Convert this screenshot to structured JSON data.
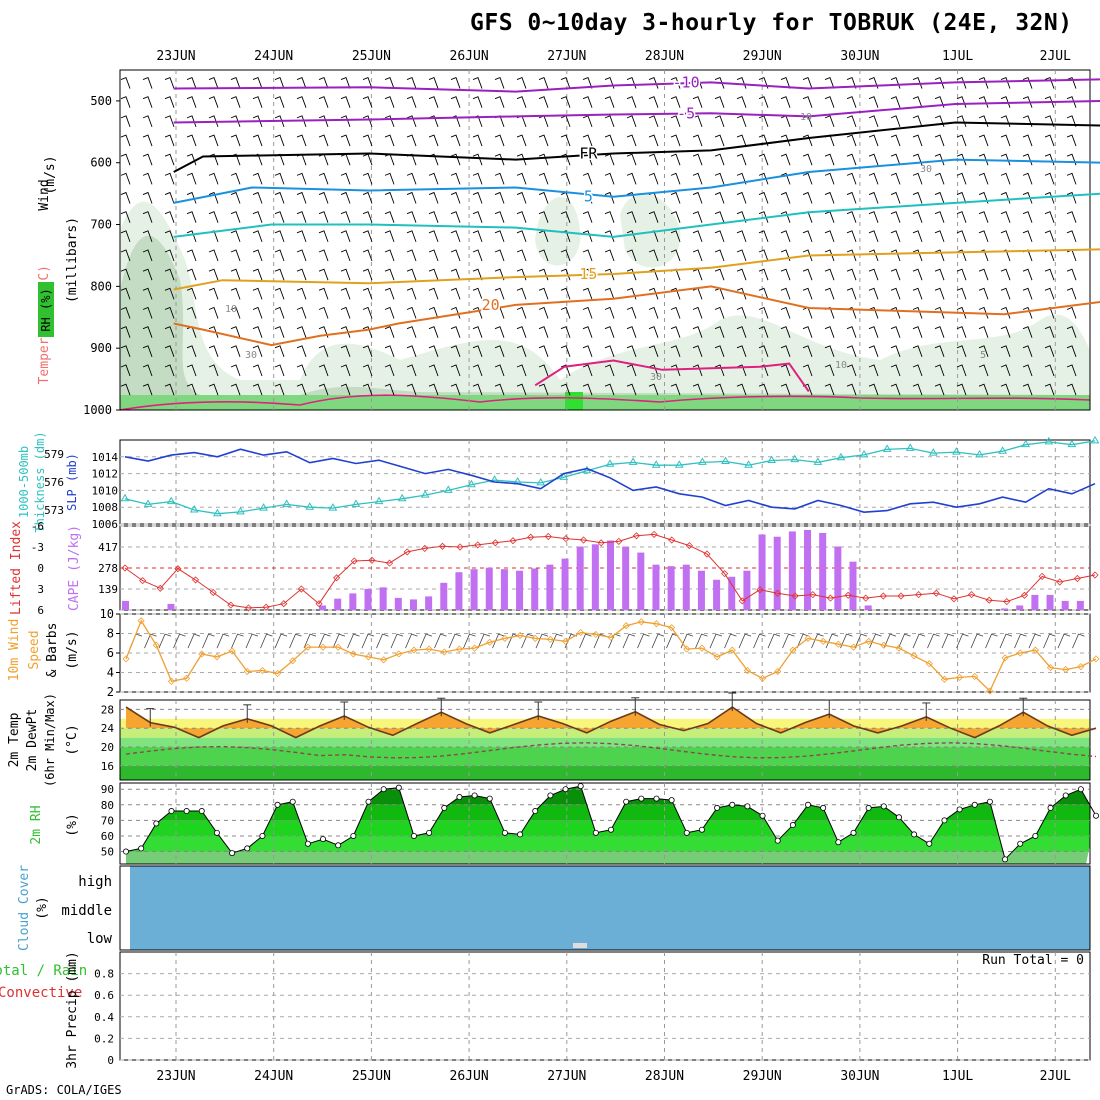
{
  "title": "GFS 0~10day 3-hourly for TOBRUK (24E, 32N)",
  "credit": "GrADS: COLA/IGES",
  "run_total_text": "Run Total = 0",
  "colors": {
    "temperature": "#f07070",
    "wind": "#000000",
    "rh": "#30c030",
    "thickness": "#30c0c0",
    "slp": "#2040d0",
    "lifted_index": "#e03030",
    "cape": "#c070f0",
    "wind10": "#f0a030",
    "rain": "#30c030",
    "convective": "#e03030",
    "cloud": "#6baed6"
  },
  "chart_data": [
    {
      "type": "line",
      "name": "upper-air time-height section",
      "categories_x": [
        "23JUN",
        "24JUN",
        "25JUN",
        "26JUN",
        "27JUN",
        "28JUN",
        "29JUN",
        "30JUN",
        "1JUL",
        "2JUL"
      ],
      "ylabel_parts": [
        "Temperature",
        "(°C)",
        "Wind",
        "(m/s)"
      ],
      "ylabel2": "(millibars)",
      "rh_label": "RH (%)",
      "y_ticks": [
        500,
        600,
        700,
        800,
        900,
        1000
      ],
      "ylim": [
        450,
        1000
      ],
      "isotherms": [
        {
          "label": "-10",
          "color": "#9a20c0",
          "points": [
            [
              0,
              480
            ],
            [
              2,
              478
            ],
            [
              3.5,
              485
            ],
            [
              4.5,
              475
            ],
            [
              5.5,
              470
            ],
            [
              6.5,
              480
            ],
            [
              8,
              470
            ],
            [
              9.5,
              465
            ]
          ]
        },
        {
          "label": "-5",
          "color": "#9a20c0",
          "points": [
            [
              0,
              535
            ],
            [
              2,
              530
            ],
            [
              3.5,
              525
            ],
            [
              4.5,
              522
            ],
            [
              5.5,
              520
            ],
            [
              6.5,
              525
            ],
            [
              8,
              505
            ],
            [
              9.5,
              500
            ]
          ]
        },
        {
          "label": "FR",
          "color": "#000000",
          "points": [
            [
              0,
              615
            ],
            [
              0.3,
              590
            ],
            [
              2,
              585
            ],
            [
              3.5,
              595
            ],
            [
              4.5,
              585
            ],
            [
              5.5,
              580
            ],
            [
              6.5,
              560
            ],
            [
              8,
              535
            ],
            [
              9.5,
              540
            ]
          ]
        },
        {
          "label": "5",
          "color": "#1a90e0",
          "points": [
            [
              0,
              665
            ],
            [
              0.8,
              640
            ],
            [
              2,
              645
            ],
            [
              3.5,
              640
            ],
            [
              4.5,
              655
            ],
            [
              5.5,
              640
            ],
            [
              6.5,
              615
            ],
            [
              8,
              595
            ],
            [
              9.5,
              600
            ]
          ]
        },
        {
          "label": "",
          "color": "#20c0c0",
          "points": [
            [
              0,
              720
            ],
            [
              1,
              700
            ],
            [
              2,
              700
            ],
            [
              3.5,
              705
            ],
            [
              4.5,
              720
            ],
            [
              5.5,
              700
            ],
            [
              6.5,
              680
            ],
            [
              8,
              665
            ],
            [
              9.5,
              650
            ]
          ]
        },
        {
          "label": "15",
          "color": "#e0a020",
          "points": [
            [
              0,
              805
            ],
            [
              0.5,
              790
            ],
            [
              2,
              795
            ],
            [
              3.5,
              785
            ],
            [
              4.5,
              780
            ],
            [
              5.5,
              770
            ],
            [
              6.5,
              750
            ],
            [
              8,
              745
            ],
            [
              9.5,
              740
            ]
          ]
        },
        {
          "label": "20",
          "color": "#e07020",
          "points": [
            [
              0,
              860
            ],
            [
              0.3,
              870
            ],
            [
              1,
              895
            ],
            [
              1.5,
              880
            ],
            [
              2,
              870
            ],
            [
              2.3,
              860
            ],
            [
              3.5,
              830
            ],
            [
              4.5,
              820
            ],
            [
              5.5,
              800
            ],
            [
              6.5,
              835
            ],
            [
              7.5,
              840
            ],
            [
              8.5,
              845
            ],
            [
              9.5,
              825
            ]
          ]
        },
        {
          "label": "",
          "color": "#e02080",
          "points": [
            [
              3.7,
              960
            ],
            [
              4,
              930
            ],
            [
              4.5,
              920
            ],
            [
              5,
              935
            ],
            [
              6,
              930
            ],
            [
              6.3,
              925
            ],
            [
              6.5,
              970
            ]
          ]
        }
      ],
      "rh_contour_labels": [
        "10",
        "30",
        "30",
        "5",
        "10",
        "10",
        "30"
      ]
    },
    {
      "type": "line",
      "name": "thickness and SLP",
      "ylabel_left": "1000-500mb Thickness (dm)",
      "ylabel_right": "SLP (mb)",
      "thickness_ticks": [
        573,
        576,
        579
      ],
      "slp_ticks": [
        1006,
        1008,
        1010,
        1012,
        1014
      ],
      "thickness_lim": [
        571.5,
        580.5
      ],
      "slp_lim": [
        1006,
        1016
      ],
      "thickness": [
        574.2,
        573.6,
        573.9,
        573.0,
        572.6,
        572.8,
        573.2,
        573.6,
        573.3,
        573.2,
        573.6,
        573.9,
        574.2,
        574.6,
        575.1,
        575.7,
        576.2,
        576.0,
        575.9,
        576.5,
        577.2,
        577.9,
        578.1,
        577.8,
        577.8,
        578.1,
        578.2,
        577.8,
        578.3,
        578.4,
        578.1,
        578.6,
        578.9,
        579.5,
        579.6,
        579.1,
        579.2,
        578.9,
        579.3,
        580.0,
        580.3,
        580.0,
        580.4
      ],
      "slp": [
        1014.0,
        1013.5,
        1014.2,
        1014.5,
        1014.0,
        1014.9,
        1014.2,
        1014.6,
        1013.3,
        1013.8,
        1013.2,
        1013.6,
        1012.8,
        1012.0,
        1012.5,
        1011.8,
        1011.0,
        1010.8,
        1010.2,
        1012.0,
        1012.6,
        1011.5,
        1010.0,
        1010.4,
        1009.6,
        1009.2,
        1008.2,
        1008.8,
        1008.0,
        1007.8,
        1008.8,
        1008.2,
        1007.4,
        1007.6,
        1008.4,
        1008.6,
        1008.0,
        1008.4,
        1009.2,
        1008.6,
        1010.2,
        1009.6,
        1010.8
      ]
    },
    {
      "type": "bar",
      "name": "lifted index and CAPE",
      "ylabel_left": "Lifted Index",
      "ylabel_right": "CAPE (J/kg)",
      "li_ticks": [
        -6,
        -3,
        0,
        3,
        6
      ],
      "cape_ticks": [
        139,
        278,
        417
      ],
      "li_lim": [
        -6,
        6
      ],
      "cape_lim": [
        0,
        556
      ],
      "lifted_index": [
        0.0,
        1.8,
        2.9,
        0.1,
        1.7,
        3.5,
        5.3,
        5.7,
        5.6,
        5.1,
        3.0,
        5.1,
        1.4,
        -1.0,
        -1.1,
        -0.7,
        -2.3,
        -2.8,
        -3.1,
        -3.0,
        -3.3,
        -3.6,
        -3.9,
        -4.4,
        -4.5,
        -4.2,
        -4.0,
        -3.6,
        -3.8,
        -4.6,
        -4.8,
        -4.0,
        -3.2,
        -2.0,
        0.8,
        4.7,
        3.1,
        3.6,
        4.0,
        3.8,
        4.3,
        3.9,
        4.3,
        4.0,
        4.0,
        3.8,
        3.6,
        4.4,
        3.8,
        4.6,
        4.8,
        3.9,
        1.2,
        2.0,
        1.5,
        1.0
      ],
      "cape": [
        60,
        0,
        0,
        40,
        0,
        0,
        0,
        0,
        0,
        0,
        0,
        0,
        0,
        30,
        75,
        110,
        140,
        150,
        80,
        70,
        90,
        180,
        250,
        270,
        280,
        270,
        260,
        275,
        300,
        340,
        420,
        435,
        460,
        420,
        380,
        300,
        290,
        300,
        260,
        200,
        220,
        260,
        500,
        485,
        520,
        530,
        510,
        420,
        320,
        30,
        0,
        0,
        0,
        0,
        0,
        0,
        0,
        0,
        10,
        30,
        100,
        100,
        60,
        60,
        0
      ]
    },
    {
      "type": "line",
      "name": "10m wind",
      "ylabel_parts": [
        "10m Wind",
        "Speed",
        "& Barbs",
        "(m/s)"
      ],
      "y_ticks": [
        2,
        4,
        6,
        8,
        10
      ],
      "ylim": [
        2,
        10
      ],
      "speed": [
        5.4,
        9.3,
        6.8,
        3.1,
        3.4,
        5.9,
        5.6,
        6.2,
        4.1,
        4.2,
        3.9,
        5.2,
        6.6,
        6.6,
        6.6,
        5.9,
        5.6,
        5.3,
        5.9,
        6.3,
        6.4,
        6.1,
        6.4,
        6.5,
        7.1,
        7.5,
        7.8,
        7.5,
        7.4,
        7.2,
        8.1,
        7.9,
        7.6,
        8.8,
        9.2,
        9.0,
        8.6,
        6.4,
        6.5,
        5.6,
        6.3,
        4.2,
        3.4,
        4.1,
        6.3,
        7.5,
        7.2,
        6.9,
        6.6,
        7.2,
        6.8,
        6.5,
        5.7,
        4.9,
        3.3,
        3.5,
        3.6,
        2.1,
        5.5,
        6.0,
        6.3,
        4.5,
        4.3,
        4.6,
        5.4
      ]
    },
    {
      "type": "area",
      "name": "2m temperature",
      "ylabel_parts": [
        "2m Temp",
        "2m DewPt",
        "(6hr Min/Max)",
        "(°C)"
      ],
      "y_ticks": [
        16,
        20,
        24,
        28
      ],
      "ylim": [
        13,
        30
      ],
      "temp": [
        28.5,
        25.2,
        24.2,
        22.0,
        24.5,
        26.0,
        24.5,
        22.0,
        24.5,
        26.6,
        24.2,
        22.5,
        25.0,
        27.4,
        25.0,
        23.0,
        24.8,
        26.6,
        25.0,
        23.0,
        25.5,
        27.5,
        24.8,
        23.5,
        25.0,
        28.5,
        25.0,
        23.0,
        25.2,
        27.0,
        24.5,
        23.0,
        24.5,
        26.4,
        24.0,
        22.0,
        24.5,
        27.4,
        24.5,
        22.5,
        24.0
      ]
    },
    {
      "type": "area",
      "name": "2m RH",
      "ylabel": "2m RH",
      "yunit": "(%)",
      "y_ticks": [
        50,
        60,
        70,
        80,
        90
      ],
      "ylim": [
        42,
        94
      ],
      "rh": [
        50,
        52,
        68,
        76,
        76,
        76,
        62,
        49,
        52,
        60,
        80,
        82,
        55,
        58,
        54,
        60,
        82,
        90,
        91,
        60,
        62,
        78,
        85,
        86,
        84,
        62,
        61,
        76,
        86,
        90,
        92,
        62,
        64,
        82,
        84,
        84,
        83,
        62,
        64,
        78,
        80,
        79,
        73,
        57,
        67,
        80,
        78,
        56,
        62,
        78,
        79,
        72,
        61,
        55,
        70,
        77,
        80,
        82,
        45,
        55,
        60,
        78,
        86,
        90,
        73
      ]
    },
    {
      "type": "area",
      "name": "cloud cover",
      "ylabel": "Cloud Cover",
      "yunit": "(%)",
      "levels": [
        "high",
        "middle",
        "low"
      ]
    },
    {
      "type": "bar",
      "name": "3hr precip",
      "ylabel": "3hr Precip (mm)",
      "label_total": "Total / Rain",
      "label_conv": "Convective",
      "y_ticks": [
        "0",
        "0.2",
        "0.4",
        "0.6",
        "0.8"
      ],
      "ylim": [
        0,
        1
      ],
      "precip": [],
      "categories_x": [
        "23JUN",
        "24JUN",
        "25JUN",
        "26JUN",
        "27JUN",
        "28JUN",
        "29JUN",
        "30JUN",
        "1JUL",
        "2JUL"
      ]
    }
  ]
}
